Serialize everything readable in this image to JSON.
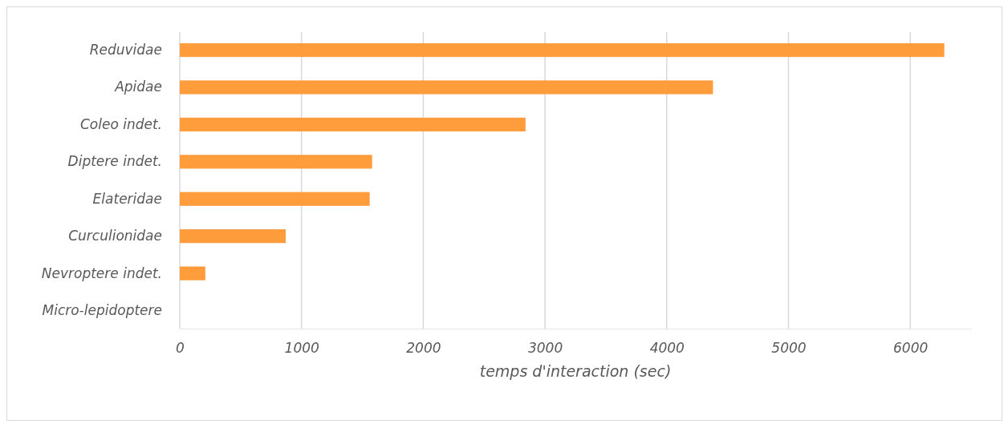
{
  "chart_data": {
    "type": "bar",
    "orientation": "horizontal",
    "xlabel": "temps d'interaction (sec)",
    "categories": [
      "Reduvidae",
      "Apidae",
      "Coleo indet.",
      "Diptere indet.",
      "Elateridae",
      "Curculionidae",
      "Nevroptere indet.",
      "Micro-lepidoptere"
    ],
    "values": [
      6280,
      4380,
      2840,
      1580,
      1560,
      870,
      210,
      0
    ],
    "color": "#ff9c3c",
    "xlim": [
      0,
      6500
    ],
    "xticks": [
      0,
      1000,
      2000,
      3000,
      4000,
      5000,
      6000
    ],
    "grid": "x"
  }
}
